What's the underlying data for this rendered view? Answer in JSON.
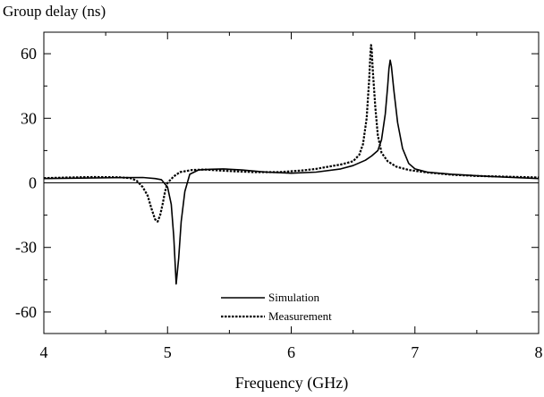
{
  "chart_data": {
    "type": "line",
    "title": "Group delay (ns)",
    "xlabel": "Frequency (GHz)",
    "ylabel": "Group delay (ns)",
    "xlim": [
      4,
      8
    ],
    "ylim": [
      -70,
      70
    ],
    "x_ticks": [
      4,
      5,
      6,
      7,
      8
    ],
    "x_tick_labels": [
      "4",
      "5",
      "6",
      "7",
      "8"
    ],
    "y_ticks": [
      60,
      30,
      0,
      -30,
      -60
    ],
    "y_tick_labels": [
      "60",
      "30",
      "0",
      "-30",
      "-60"
    ],
    "grid": false,
    "legend_position": "bottom-center",
    "series": [
      {
        "name": "Simulation",
        "style": "solid",
        "points": [
          [
            4.0,
            2.0
          ],
          [
            4.3,
            2.2
          ],
          [
            4.6,
            2.4
          ],
          [
            4.8,
            2.5
          ],
          [
            4.9,
            2.0
          ],
          [
            4.95,
            1.5
          ],
          [
            5.0,
            -2
          ],
          [
            5.03,
            -10
          ],
          [
            5.05,
            -25
          ],
          [
            5.07,
            -47
          ],
          [
            5.09,
            -35
          ],
          [
            5.11,
            -18
          ],
          [
            5.14,
            -4
          ],
          [
            5.18,
            4
          ],
          [
            5.25,
            6
          ],
          [
            5.35,
            6.3
          ],
          [
            5.45,
            6.5
          ],
          [
            5.6,
            6.0
          ],
          [
            5.8,
            5.0
          ],
          [
            6.0,
            4.5
          ],
          [
            6.2,
            5.0
          ],
          [
            6.4,
            6.5
          ],
          [
            6.5,
            8.0
          ],
          [
            6.6,
            10.5
          ],
          [
            6.65,
            12.5
          ],
          [
            6.7,
            15
          ],
          [
            6.73,
            20
          ],
          [
            6.76,
            32
          ],
          [
            6.78,
            45
          ],
          [
            6.79,
            53
          ],
          [
            6.8,
            57
          ],
          [
            6.81,
            54
          ],
          [
            6.83,
            43
          ],
          [
            6.86,
            28
          ],
          [
            6.9,
            16
          ],
          [
            6.95,
            9.0
          ],
          [
            7.0,
            6.5
          ],
          [
            7.1,
            5.0
          ],
          [
            7.3,
            4.0
          ],
          [
            7.6,
            3.0
          ],
          [
            8.0,
            2.0
          ]
        ]
      },
      {
        "name": "Measurement",
        "style": "dashed",
        "points": [
          [
            4.0,
            2.2
          ],
          [
            4.2,
            2.5
          ],
          [
            4.4,
            2.7
          ],
          [
            4.6,
            2.6
          ],
          [
            4.7,
            2.2
          ],
          [
            4.75,
            1.0
          ],
          [
            4.8,
            -2
          ],
          [
            4.84,
            -6
          ],
          [
            4.87,
            -12
          ],
          [
            4.9,
            -17
          ],
          [
            4.92,
            -18
          ],
          [
            4.94,
            -15
          ],
          [
            4.96,
            -10
          ],
          [
            4.98,
            -4
          ],
          [
            5.0,
            0
          ],
          [
            5.05,
            3
          ],
          [
            5.1,
            5
          ],
          [
            5.2,
            6.0
          ],
          [
            5.3,
            6.2
          ],
          [
            5.5,
            5.5
          ],
          [
            5.7,
            5.0
          ],
          [
            5.9,
            5.0
          ],
          [
            6.1,
            5.8
          ],
          [
            6.2,
            6.5
          ],
          [
            6.3,
            7.5
          ],
          [
            6.4,
            8.5
          ],
          [
            6.5,
            10
          ],
          [
            6.55,
            13
          ],
          [
            6.58,
            18
          ],
          [
            6.61,
            30
          ],
          [
            6.63,
            48
          ],
          [
            6.64,
            60
          ],
          [
            6.645,
            64
          ],
          [
            6.65,
            62
          ],
          [
            6.66,
            52
          ],
          [
            6.68,
            35
          ],
          [
            6.7,
            22
          ],
          [
            6.73,
            14
          ],
          [
            6.78,
            10
          ],
          [
            6.85,
            7.5
          ],
          [
            6.95,
            6.0
          ],
          [
            7.1,
            4.8
          ],
          [
            7.3,
            3.8
          ],
          [
            7.5,
            3.2
          ],
          [
            7.8,
            2.8
          ],
          [
            8.0,
            2.5
          ]
        ]
      }
    ]
  }
}
